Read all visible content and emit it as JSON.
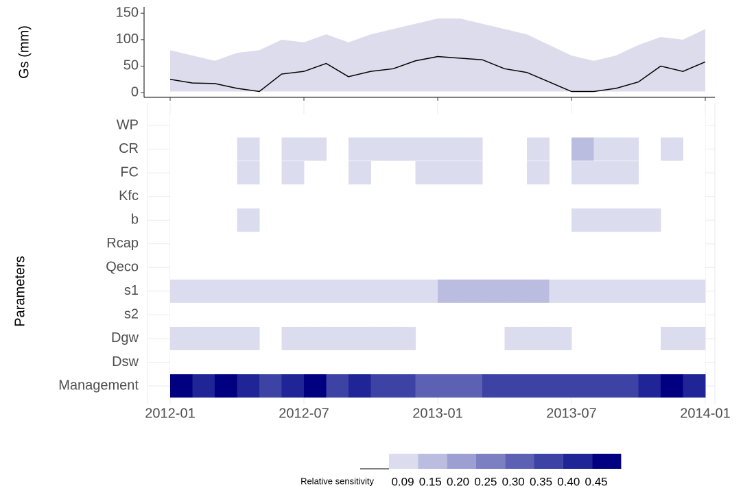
{
  "chart_data": [
    {
      "type": "line-band",
      "y_label": "Gs (mm)",
      "x": [
        "2012-01",
        "2012-02",
        "2012-03",
        "2012-04",
        "2012-05",
        "2012-06",
        "2012-07",
        "2012-08",
        "2012-09",
        "2012-10",
        "2012-11",
        "2012-12",
        "2013-01",
        "2013-02",
        "2013-03",
        "2013-04",
        "2013-05",
        "2013-06",
        "2013-07",
        "2013-08",
        "2013-09",
        "2013-10",
        "2013-11",
        "2013-12",
        "2014-01"
      ],
      "ylim": [
        -9,
        162
      ],
      "yticks": [
        0,
        50,
        100,
        150
      ],
      "band": {
        "color": "#dcdcec",
        "lower": [
          2,
          2,
          2,
          2,
          2,
          2,
          2,
          2,
          2,
          2,
          2,
          2,
          2,
          2,
          2,
          2,
          2,
          2,
          2,
          2,
          2,
          2,
          2,
          2,
          2
        ],
        "upper": [
          80,
          70,
          60,
          75,
          80,
          100,
          95,
          110,
          95,
          110,
          120,
          130,
          140,
          140,
          130,
          120,
          110,
          90,
          70,
          60,
          70,
          90,
          105,
          100,
          120
        ]
      },
      "series": [
        {
          "color": "#000000",
          "values": [
            25,
            18,
            17,
            8,
            2,
            35,
            40,
            55,
            30,
            40,
            45,
            60,
            68,
            65,
            62,
            45,
            38,
            20,
            2,
            2,
            8,
            20,
            50,
            40,
            58
          ]
        }
      ]
    },
    {
      "type": "heatmap",
      "y_label": "Parameters",
      "categories": [
        "WP",
        "CR",
        "FC",
        "Kfc",
        "b",
        "Rcap",
        "Qeco",
        "s1",
        "s2",
        "Dgw",
        "Dsw",
        "Management"
      ],
      "x": [
        "2012-01",
        "2012-02",
        "2012-03",
        "2012-04",
        "2012-05",
        "2012-06",
        "2012-07",
        "2012-08",
        "2012-09",
        "2012-10",
        "2012-11",
        "2012-12",
        "2013-01",
        "2013-02",
        "2013-03",
        "2013-04",
        "2013-05",
        "2013-06",
        "2013-07",
        "2013-08",
        "2013-09",
        "2013-10",
        "2013-11",
        "2013-12"
      ],
      "xticks": [
        "2012-01",
        "2012-07",
        "2013-01",
        "2013-07",
        "2014-01"
      ],
      "values": [
        [
          null,
          null,
          null,
          null,
          null,
          null,
          null,
          null,
          null,
          null,
          null,
          null,
          null,
          null,
          null,
          null,
          null,
          null,
          null,
          null,
          null,
          null,
          null,
          null
        ],
        [
          null,
          null,
          null,
          0.1,
          null,
          0.1,
          0.1,
          null,
          0.1,
          0.1,
          0.1,
          0.1,
          0.1,
          0.1,
          null,
          null,
          0.1,
          null,
          0.17,
          0.1,
          0.1,
          null,
          0.1,
          null
        ],
        [
          null,
          null,
          null,
          0.12,
          null,
          0.1,
          null,
          null,
          0.1,
          null,
          null,
          0.1,
          0.1,
          0.1,
          null,
          null,
          0.1,
          null,
          0.1,
          0.1,
          0.1,
          null,
          null,
          null
        ],
        [
          null,
          null,
          null,
          null,
          null,
          null,
          null,
          null,
          null,
          null,
          null,
          null,
          null,
          null,
          null,
          null,
          null,
          null,
          null,
          null,
          null,
          null,
          null,
          null
        ],
        [
          null,
          null,
          null,
          0.1,
          null,
          null,
          null,
          null,
          null,
          null,
          null,
          null,
          null,
          null,
          null,
          null,
          null,
          null,
          0.1,
          0.1,
          0.1,
          0.1,
          null,
          null
        ],
        [
          null,
          null,
          null,
          null,
          null,
          null,
          null,
          null,
          null,
          null,
          null,
          null,
          null,
          null,
          null,
          null,
          null,
          null,
          null,
          null,
          null,
          null,
          null,
          null
        ],
        [
          null,
          null,
          null,
          null,
          null,
          null,
          null,
          null,
          null,
          null,
          null,
          null,
          null,
          null,
          null,
          null,
          null,
          null,
          null,
          null,
          null,
          null,
          null,
          null
        ],
        [
          0.1,
          0.1,
          0.1,
          0.1,
          0.1,
          0.1,
          0.1,
          0.1,
          0.1,
          0.1,
          0.1,
          0.1,
          0.17,
          0.17,
          0.17,
          0.17,
          0.17,
          0.1,
          0.1,
          0.1,
          0.1,
          0.1,
          0.1,
          0.1
        ],
        [
          null,
          null,
          null,
          null,
          null,
          null,
          null,
          null,
          null,
          null,
          null,
          null,
          null,
          null,
          null,
          null,
          null,
          null,
          null,
          null,
          null,
          null,
          null,
          null
        ],
        [
          0.1,
          0.1,
          0.1,
          0.1,
          null,
          0.1,
          0.1,
          0.1,
          0.1,
          0.1,
          0.1,
          null,
          null,
          null,
          null,
          0.1,
          0.1,
          0.1,
          null,
          null,
          null,
          null,
          0.1,
          0.1
        ],
        [
          null,
          null,
          null,
          null,
          null,
          null,
          null,
          null,
          null,
          null,
          null,
          null,
          null,
          null,
          null,
          null,
          null,
          null,
          null,
          null,
          null,
          null,
          null,
          null
        ],
        [
          0.45,
          0.42,
          0.45,
          0.42,
          0.38,
          0.42,
          0.45,
          0.38,
          0.42,
          0.38,
          0.35,
          0.33,
          0.32,
          0.33,
          0.35,
          0.35,
          0.35,
          0.35,
          0.38,
          0.35,
          0.38,
          0.42,
          0.45,
          0.42
        ]
      ],
      "legend": {
        "title": "Relative sensitivity",
        "breaks": [
          0.09,
          0.15,
          {
            "value": 0.2,
            "label": "0.20"
          },
          0.25,
          {
            "value": 0.3,
            "label": "0.30"
          },
          0.35,
          {
            "value": 0.4,
            "label": "0.40"
          },
          0.45
        ],
        "colors": [
          "#dcdcef",
          "#bbbde0",
          "#9c9fd2",
          "#7c80c3",
          "#5c61b4",
          "#3d42a5",
          "#1f2496",
          "#000080"
        ]
      }
    }
  ]
}
